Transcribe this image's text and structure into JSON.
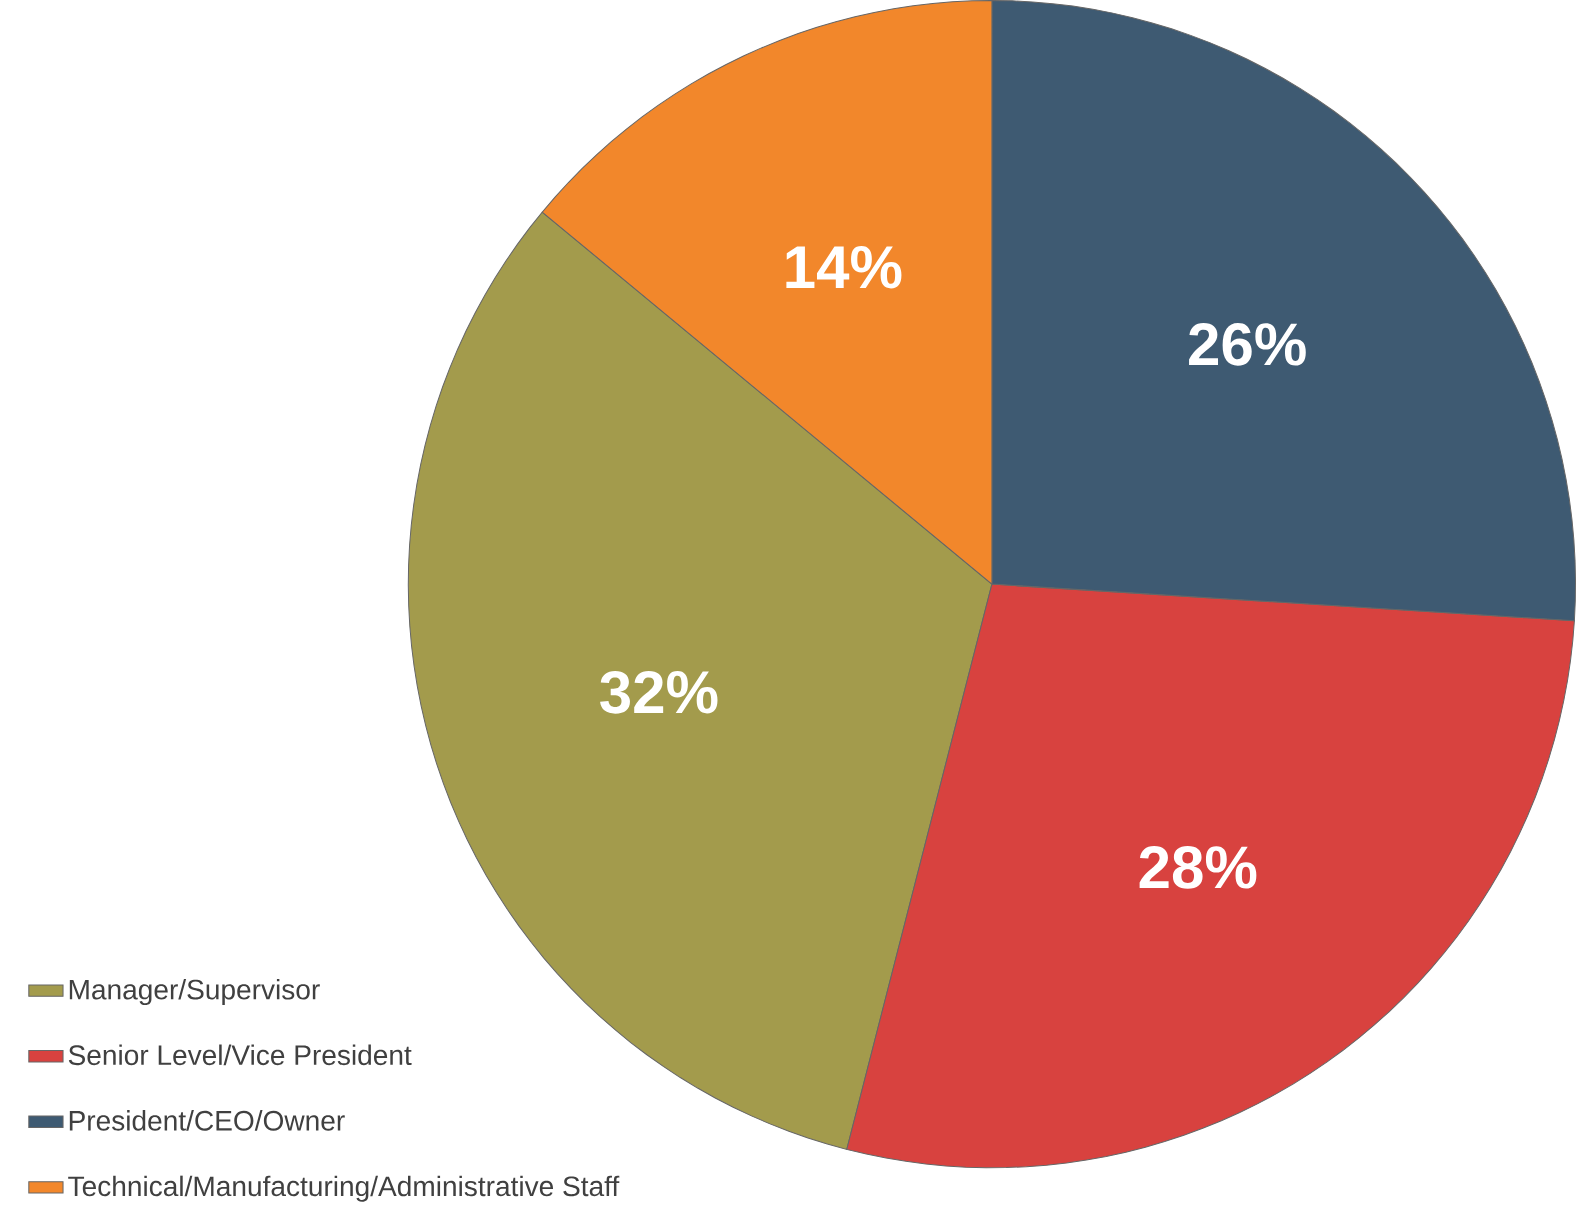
{
  "chart_data": {
    "type": "pie",
    "categories": [
      "Manager/Supervisor",
      "Senior Level/Vice President",
      "President/CEO/Owner",
      "Technical/Manufacturing/Administrative Staff"
    ],
    "values": [
      32,
      28,
      26,
      14
    ],
    "value_labels": [
      "32%",
      "28%",
      "26%",
      "14%"
    ],
    "colors": [
      "#a39b4c",
      "#d8423f",
      "#3e5a72",
      "#f2872b"
    ],
    "legend": "bottom left"
  }
}
